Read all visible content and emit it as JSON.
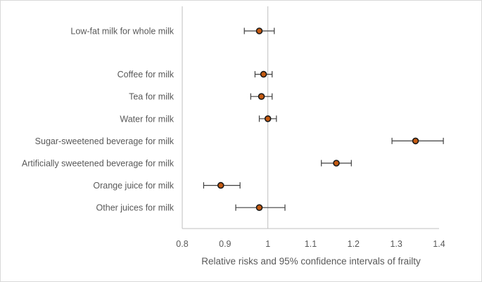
{
  "chart_data": {
    "type": "forest",
    "title": "",
    "xlabel": "Relative risks and 95% confidence intervals of frailty",
    "ylabel": "",
    "xlim": [
      0.8,
      1.4
    ],
    "xticks": [
      "0.8",
      "0.9",
      "1",
      "1.1",
      "1.2",
      "1.3",
      "1.4"
    ],
    "reference_line": 1.0,
    "grid": false,
    "marker_fill": "#c55a11",
    "marker_edge": "#1a1a1a",
    "error_bar_color": "#404040",
    "axis_color": "#bfbfbf",
    "rows": [
      {
        "label": "Low-fat milk for whole milk",
        "estimate": 0.98,
        "lower": 0.945,
        "upper": 1.015,
        "gap_after": true
      },
      {
        "label": "Coffee for milk",
        "estimate": 0.99,
        "lower": 0.97,
        "upper": 1.01
      },
      {
        "label": "Tea for milk",
        "estimate": 0.985,
        "lower": 0.96,
        "upper": 1.01
      },
      {
        "label": "Water for milk",
        "estimate": 1.0,
        "lower": 0.98,
        "upper": 1.02
      },
      {
        "label": "Sugar-sweetened beverage for milk",
        "estimate": 1.345,
        "lower": 1.29,
        "upper": 1.41
      },
      {
        "label": "Artificially sweetened beverage for milk",
        "estimate": 1.16,
        "lower": 1.125,
        "upper": 1.195
      },
      {
        "label": "Orange juice for milk",
        "estimate": 0.89,
        "lower": 0.85,
        "upper": 0.935
      },
      {
        "label": "Other juices for milk",
        "estimate": 0.98,
        "lower": 0.925,
        "upper": 1.04
      }
    ]
  }
}
